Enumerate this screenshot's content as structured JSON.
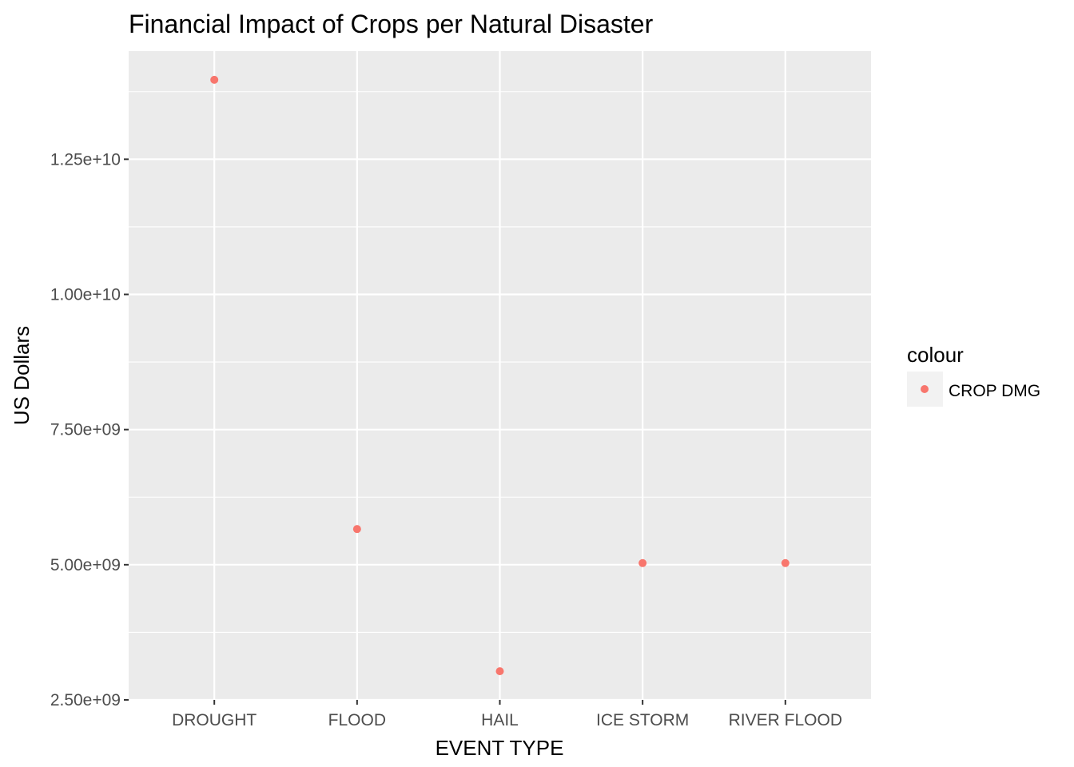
{
  "chart_data": {
    "type": "scatter",
    "title": "Financial Impact of Crops per Natural Disaster",
    "xlabel": "EVENT TYPE",
    "ylabel": "US Dollars",
    "categories": [
      "DROUGHT",
      "FLOOD",
      "HAIL",
      "ICE STORM",
      "RIVER FLOOD"
    ],
    "series": [
      {
        "name": "CROP DMG",
        "color": "#f8766d",
        "values": [
          13970000000,
          5660000000,
          3030000000,
          5030000000,
          5030000000
        ]
      }
    ],
    "ylim": [
      2500000000,
      14500000000
    ],
    "yticks": [
      2500000000,
      5000000000,
      7500000000,
      10000000000,
      12500000000
    ],
    "ytick_labels": [
      "2.50e+09",
      "5.00e+09",
      "7.50e+09",
      "1.00e+10",
      "1.25e+10"
    ],
    "grid": true,
    "panel_color": "#ebebeb",
    "grid_color": "#ffffff",
    "legend": {
      "title": "colour",
      "placement": "right",
      "entries": [
        "CROP DMG"
      ]
    }
  }
}
